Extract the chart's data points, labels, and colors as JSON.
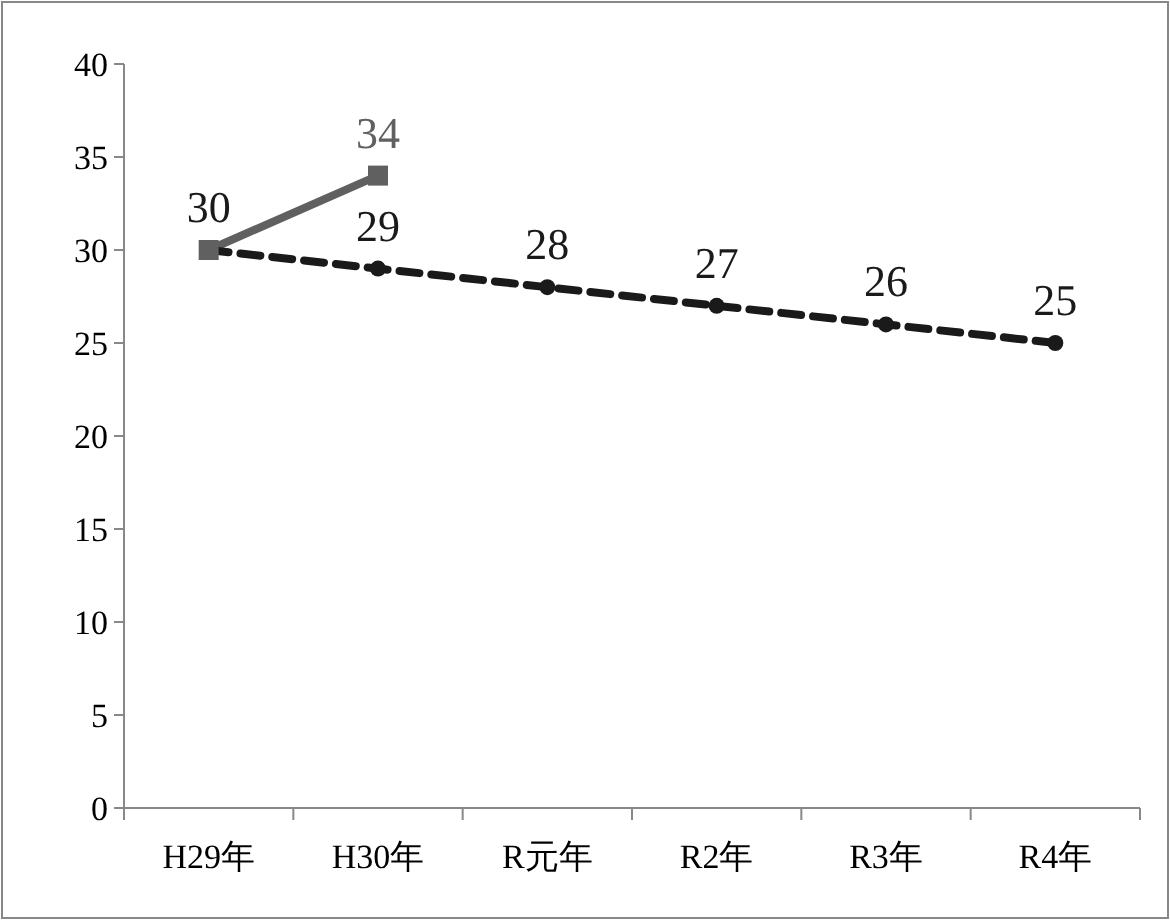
{
  "chart_data": {
    "type": "line",
    "categories": [
      "H29年",
      "H30年",
      "R元年",
      "R2年",
      "R3年",
      "R4年"
    ],
    "ylim": [
      0,
      40
    ],
    "yticks": [
      0,
      5,
      10,
      15,
      20,
      25,
      30,
      35,
      40
    ],
    "series": [
      {
        "color": "#606060",
        "values": [
          30,
          34,
          null,
          null,
          null,
          null
        ],
        "marker": "square",
        "line_style": "solid",
        "value_labels": [
          null,
          "34",
          null,
          null,
          null,
          null
        ]
      },
      {
        "color": "#1a1a1a",
        "values": [
          30,
          29,
          28,
          27,
          26,
          25
        ],
        "marker": "circle",
        "line_style": "dashed",
        "value_labels": [
          "30",
          "29",
          "28",
          "27",
          "26",
          "25"
        ]
      }
    ]
  }
}
